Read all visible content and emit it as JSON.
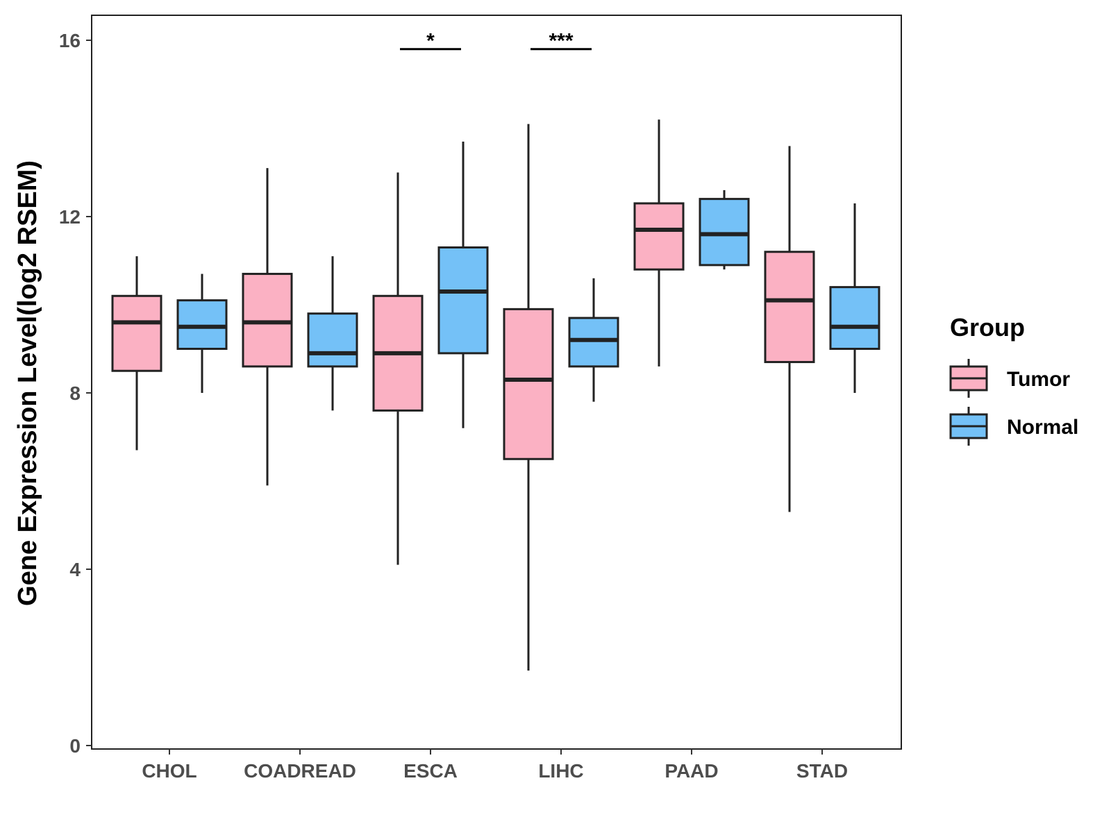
{
  "chart_data": {
    "type": "boxplot",
    "title": "",
    "xlabel": "",
    "ylabel": "Gene Expression Level(log2 RSEM)",
    "ylim": [
      0,
      16.5
    ],
    "yticks": [
      0,
      4,
      8,
      12,
      16
    ],
    "categories": [
      "CHOL",
      "COADREAD",
      "ESCA",
      "LIHC",
      "PAAD",
      "STAD"
    ],
    "legend": {
      "title": "Group",
      "position": "right",
      "entries": [
        "Tumor",
        "Normal"
      ]
    },
    "colors": {
      "Tumor": "#fbb1c3",
      "Normal": "#74c1f7",
      "outline": "#222222"
    },
    "series": [
      {
        "name": "Tumor",
        "boxes": [
          {
            "category": "CHOL",
            "min": 6.7,
            "q1": 8.5,
            "median": 9.6,
            "q3": 10.2,
            "max": 11.1
          },
          {
            "category": "COADREAD",
            "min": 5.9,
            "q1": 8.6,
            "median": 9.6,
            "q3": 10.7,
            "max": 13.1
          },
          {
            "category": "ESCA",
            "min": 4.1,
            "q1": 7.6,
            "median": 8.9,
            "q3": 10.2,
            "max": 13.0
          },
          {
            "category": "LIHC",
            "min": 1.7,
            "q1": 6.5,
            "median": 8.3,
            "q3": 9.9,
            "max": 14.1
          },
          {
            "category": "PAAD",
            "min": 8.6,
            "q1": 10.8,
            "median": 11.7,
            "q3": 12.3,
            "max": 14.2
          },
          {
            "category": "STAD",
            "min": 5.3,
            "q1": 8.7,
            "median": 10.1,
            "q3": 11.2,
            "max": 13.6
          }
        ]
      },
      {
        "name": "Normal",
        "boxes": [
          {
            "category": "CHOL",
            "min": 8.0,
            "q1": 9.0,
            "median": 9.5,
            "q3": 10.1,
            "max": 10.7
          },
          {
            "category": "COADREAD",
            "min": 7.6,
            "q1": 8.6,
            "median": 8.9,
            "q3": 9.8,
            "max": 11.1
          },
          {
            "category": "ESCA",
            "min": 7.2,
            "q1": 8.9,
            "median": 10.3,
            "q3": 11.3,
            "max": 13.7
          },
          {
            "category": "LIHC",
            "min": 7.8,
            "q1": 8.6,
            "median": 9.2,
            "q3": 9.7,
            "max": 10.6
          },
          {
            "category": "PAAD",
            "min": 10.8,
            "q1": 10.9,
            "median": 11.6,
            "q3": 12.4,
            "max": 12.6
          },
          {
            "category": "STAD",
            "min": 8.0,
            "q1": 9.0,
            "median": 9.5,
            "q3": 10.4,
            "max": 12.3
          }
        ]
      }
    ],
    "annotations": [
      {
        "category": "ESCA",
        "label": "*",
        "y": 15.8
      },
      {
        "category": "LIHC",
        "label": "***",
        "y": 15.8
      }
    ]
  }
}
